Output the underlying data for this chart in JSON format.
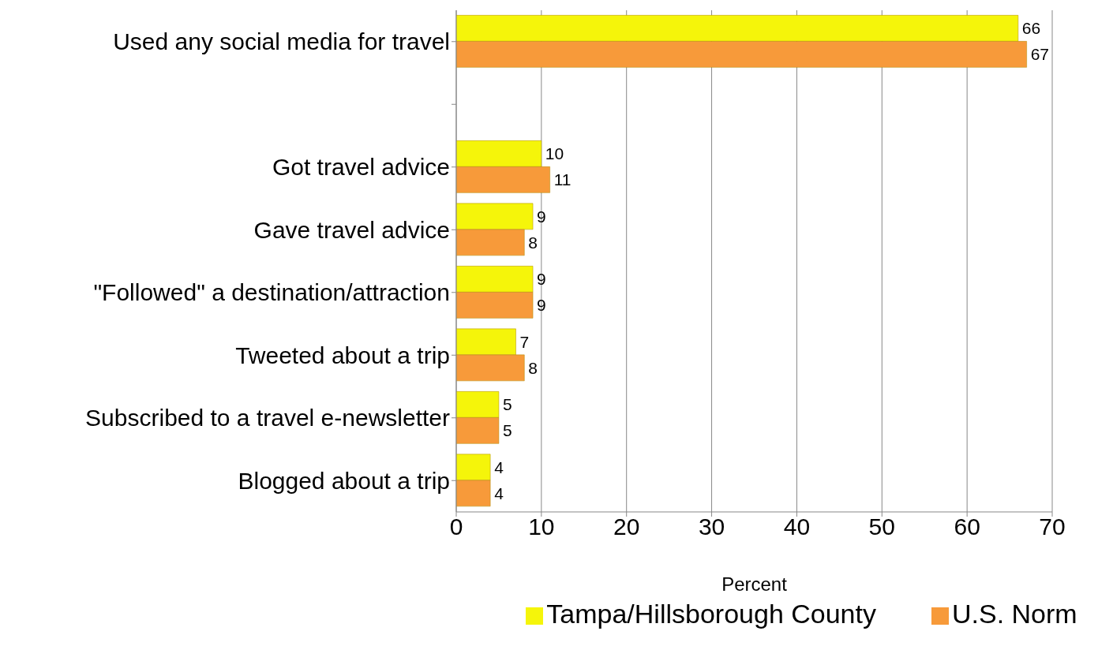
{
  "chart_data": {
    "type": "bar",
    "orientation": "horizontal",
    "xlabel": "Percent",
    "categories": [
      "Used any social media for travel",
      null,
      "Got travel advice",
      "Gave travel advice",
      "\"Followed\" a destination/attraction",
      "Tweeted about a trip",
      "Subscribed to a travel e-newsletter",
      "Blogged about a trip"
    ],
    "series": [
      {
        "name": "Tampa/Hillsborough County",
        "color": "#f5f50a",
        "values": [
          66,
          null,
          10,
          9,
          9,
          7,
          5,
          4
        ]
      },
      {
        "name": "U.S. Norm",
        "color": "#f79a3a",
        "values": [
          67,
          null,
          11,
          8,
          9,
          8,
          5,
          4
        ]
      }
    ],
    "xlim": [
      0,
      70
    ],
    "xticks": [
      0,
      10,
      20,
      30,
      40,
      50,
      60,
      70
    ],
    "grid": "x",
    "legend": "bottom",
    "data_labels": true
  }
}
